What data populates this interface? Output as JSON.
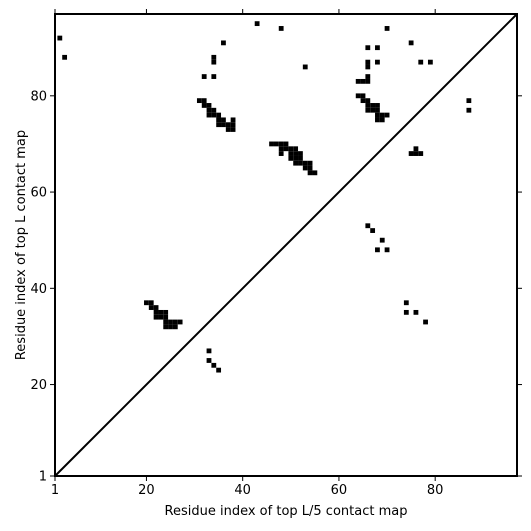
{
  "chart_data": {
    "type": "scatter",
    "title": "",
    "xlabel": "Residue index of top L/5 contact map",
    "ylabel": "Residue index of top L contact map",
    "xlim": [
      1,
      97
    ],
    "ylim": [
      1,
      97
    ],
    "xticks": [
      1,
      20,
      40,
      60,
      80
    ],
    "yticks": [
      1,
      20,
      40,
      60,
      80
    ],
    "grid": false,
    "diagonal_line": true,
    "marker_color": "#000000",
    "marker": "filled-square",
    "upper_triangle_points": [
      [
        2,
        92
      ],
      [
        3,
        88
      ],
      [
        43,
        95
      ],
      [
        48,
        94
      ],
      [
        36,
        91
      ],
      [
        34,
        88
      ],
      [
        34,
        87
      ],
      [
        32,
        84
      ],
      [
        34,
        84
      ],
      [
        53,
        86
      ],
      [
        66,
        90
      ],
      [
        68,
        90
      ],
      [
        70,
        94
      ],
      [
        75,
        91
      ],
      [
        66,
        87
      ],
      [
        68,
        87
      ],
      [
        66,
        86
      ],
      [
        77,
        87
      ],
      [
        79,
        87
      ],
      [
        31,
        79
      ],
      [
        32,
        79
      ],
      [
        32,
        78
      ],
      [
        33,
        78
      ],
      [
        33,
        77
      ],
      [
        34,
        77
      ],
      [
        33,
        76
      ],
      [
        34,
        76
      ],
      [
        35,
        76
      ],
      [
        35,
        75
      ],
      [
        36,
        75
      ],
      [
        35,
        74
      ],
      [
        36,
        74
      ],
      [
        37,
        74
      ],
      [
        38,
        74
      ],
      [
        38,
        75
      ],
      [
        37,
        73
      ],
      [
        38,
        73
      ],
      [
        46,
        70
      ],
      [
        47,
        70
      ],
      [
        48,
        70
      ],
      [
        49,
        70
      ],
      [
        48,
        69
      ],
      [
        49,
        69
      ],
      [
        50,
        69
      ],
      [
        51,
        69
      ],
      [
        48,
        68
      ],
      [
        50,
        68
      ],
      [
        51,
        68
      ],
      [
        52,
        68
      ],
      [
        50,
        67
      ],
      [
        51,
        67
      ],
      [
        52,
        67
      ],
      [
        51,
        66
      ],
      [
        52,
        66
      ],
      [
        53,
        66
      ],
      [
        54,
        66
      ],
      [
        53,
        65
      ],
      [
        54,
        65
      ],
      [
        54,
        64
      ],
      [
        55,
        64
      ],
      [
        64,
        83
      ],
      [
        65,
        83
      ],
      [
        66,
        83
      ],
      [
        66,
        84
      ],
      [
        64,
        80
      ],
      [
        65,
        80
      ],
      [
        65,
        79
      ],
      [
        66,
        79
      ],
      [
        66,
        78
      ],
      [
        67,
        78
      ],
      [
        68,
        78
      ],
      [
        66,
        77
      ],
      [
        67,
        77
      ],
      [
        68,
        77
      ],
      [
        68,
        76
      ],
      [
        69,
        76
      ],
      [
        70,
        76
      ],
      [
        68,
        75
      ],
      [
        69,
        75
      ],
      [
        75,
        68
      ],
      [
        76,
        68
      ],
      [
        77,
        68
      ],
      [
        76,
        69
      ],
      [
        87,
        79
      ],
      [
        87,
        77
      ]
    ],
    "lower_triangle_points": [
      [
        20,
        37
      ],
      [
        21,
        37
      ],
      [
        21,
        36
      ],
      [
        22,
        36
      ],
      [
        22,
        35
      ],
      [
        23,
        35
      ],
      [
        24,
        35
      ],
      [
        22,
        34
      ],
      [
        23,
        34
      ],
      [
        24,
        34
      ],
      [
        24,
        33
      ],
      [
        25,
        33
      ],
      [
        26,
        33
      ],
      [
        27,
        33
      ],
      [
        24,
        32
      ],
      [
        25,
        32
      ],
      [
        26,
        32
      ],
      [
        33,
        27
      ],
      [
        33,
        25
      ],
      [
        34,
        24
      ],
      [
        35,
        23
      ],
      [
        66,
        53
      ],
      [
        67,
        52
      ],
      [
        69,
        50
      ],
      [
        68,
        48
      ],
      [
        70,
        48
      ],
      [
        74,
        37
      ],
      [
        74,
        35
      ],
      [
        76,
        35
      ],
      [
        78,
        33
      ]
    ]
  }
}
